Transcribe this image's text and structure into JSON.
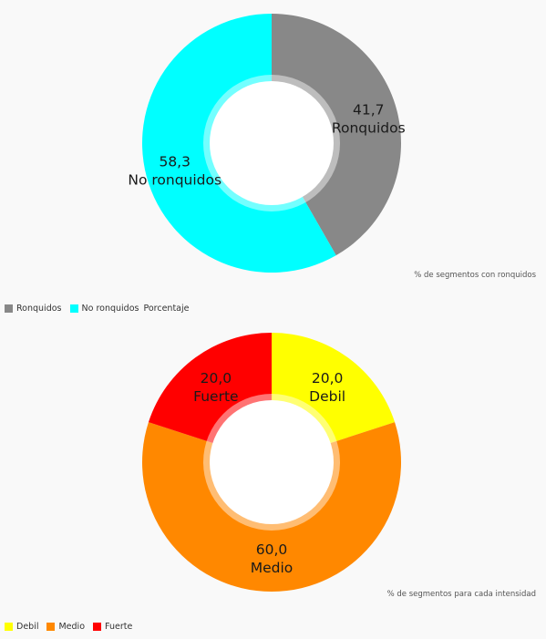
{
  "chart_data": [
    {
      "type": "pie",
      "description": "% de segmentos con ronquidos",
      "slices": [
        {
          "label": "Ronquidos",
          "value": 41.7,
          "display": "41,7",
          "color": "#888888"
        },
        {
          "label": "No ronquidos",
          "value": 58.3,
          "display": "58,3",
          "color": "#00ffff"
        }
      ],
      "legend_extra": "Porcentaje"
    },
    {
      "type": "pie",
      "description": "% de segmentos para cada intensidad",
      "slices": [
        {
          "label": "Debil",
          "value": 20.0,
          "display": "20,0",
          "color": "#ffff00"
        },
        {
          "label": "Medio",
          "value": 60.0,
          "display": "60,0",
          "color": "#ff8800"
        },
        {
          "label": "Fuerte",
          "value": 20.0,
          "display": "20,0",
          "color": "#ff0000"
        }
      ]
    }
  ]
}
